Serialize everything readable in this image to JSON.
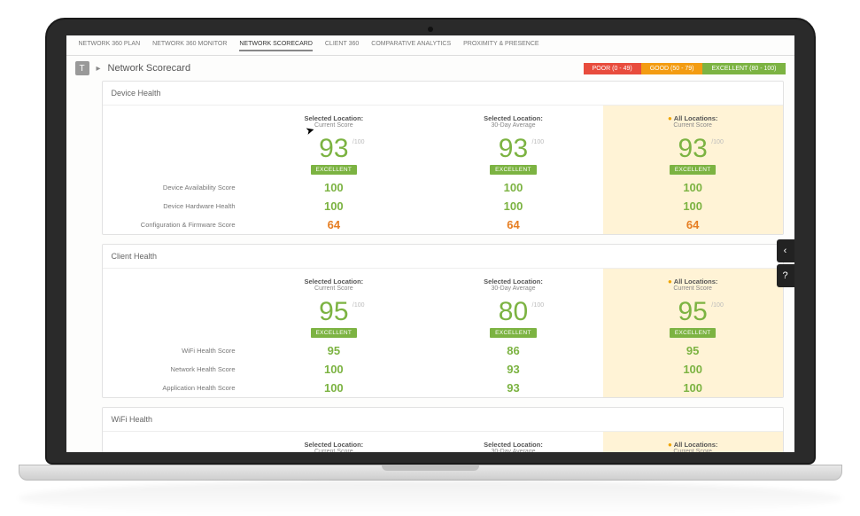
{
  "colors": {
    "poor": "#e84c3d",
    "good": "#f39c12",
    "excellent": "#7cb342",
    "highlight_bg": "#fff3d6",
    "metric_green": "#7cb342",
    "metric_orange": "#e67e22"
  },
  "tabs": [
    {
      "label": "NETWORK 360 PLAN",
      "active": false
    },
    {
      "label": "NETWORK 360 MONITOR",
      "active": false
    },
    {
      "label": "NETWORK SCORECARD",
      "active": true
    },
    {
      "label": "CLIENT 360",
      "active": false
    },
    {
      "label": "COMPARATIVE ANALYTICS",
      "active": false
    },
    {
      "label": "PROXIMITY & PRESENCE",
      "active": false
    }
  ],
  "page_title": "Network Scorecard",
  "legend": [
    {
      "label": "POOR (0 - 49)",
      "color": "#e84c3d"
    },
    {
      "label": "GOOD (50 - 79)",
      "color": "#f39c12"
    },
    {
      "label": "EXCELLENT (80 - 100)",
      "color": "#7cb342"
    }
  ],
  "column_headers": [
    {
      "title": "Selected Location:",
      "sub": "Current Score",
      "highlight": false,
      "star": false
    },
    {
      "title": "Selected Location:",
      "sub": "30-Day Average",
      "highlight": false,
      "star": false
    },
    {
      "title": "All Locations:",
      "sub": "Current Score",
      "highlight": true,
      "star": true
    }
  ],
  "of100": "/100",
  "panels": [
    {
      "title": "Device Health",
      "scores": [
        {
          "value": "93",
          "badge": "EXCELLENT",
          "badge_color": "#7cb342",
          "score_color": "#7cb342"
        },
        {
          "value": "93",
          "badge": "EXCELLENT",
          "badge_color": "#7cb342",
          "score_color": "#7cb342"
        },
        {
          "value": "93",
          "badge": "EXCELLENT",
          "badge_color": "#7cb342",
          "score_color": "#7cb342"
        }
      ],
      "rows": [
        {
          "label": "Device Availability Score",
          "vals": [
            {
              "v": "100",
              "c": "#7cb342"
            },
            {
              "v": "100",
              "c": "#7cb342"
            },
            {
              "v": "100",
              "c": "#7cb342"
            }
          ]
        },
        {
          "label": "Device Hardware Health",
          "vals": [
            {
              "v": "100",
              "c": "#7cb342"
            },
            {
              "v": "100",
              "c": "#7cb342"
            },
            {
              "v": "100",
              "c": "#7cb342"
            }
          ]
        },
        {
          "label": "Configuration & Firmware Score",
          "vals": [
            {
              "v": "64",
              "c": "#e67e22"
            },
            {
              "v": "64",
              "c": "#e67e22"
            },
            {
              "v": "64",
              "c": "#e67e22"
            }
          ]
        }
      ]
    },
    {
      "title": "Client Health",
      "scores": [
        {
          "value": "95",
          "badge": "EXCELLENT",
          "badge_color": "#7cb342",
          "score_color": "#7cb342"
        },
        {
          "value": "80",
          "badge": "EXCELLENT",
          "badge_color": "#7cb342",
          "score_color": "#7cb342"
        },
        {
          "value": "95",
          "badge": "EXCELLENT",
          "badge_color": "#7cb342",
          "score_color": "#7cb342"
        }
      ],
      "rows": [
        {
          "label": "WiFi Health Score",
          "vals": [
            {
              "v": "95",
              "c": "#7cb342"
            },
            {
              "v": "86",
              "c": "#7cb342"
            },
            {
              "v": "95",
              "c": "#7cb342"
            }
          ]
        },
        {
          "label": "Network Health Score",
          "vals": [
            {
              "v": "100",
              "c": "#7cb342"
            },
            {
              "v": "93",
              "c": "#7cb342"
            },
            {
              "v": "100",
              "c": "#7cb342"
            }
          ]
        },
        {
          "label": "Application Health Score",
          "vals": [
            {
              "v": "100",
              "c": "#7cb342"
            },
            {
              "v": "93",
              "c": "#7cb342"
            },
            {
              "v": "100",
              "c": "#7cb342"
            }
          ]
        }
      ]
    },
    {
      "title": "WiFi Health",
      "scores": [],
      "rows": [],
      "headers_only": true
    }
  ]
}
